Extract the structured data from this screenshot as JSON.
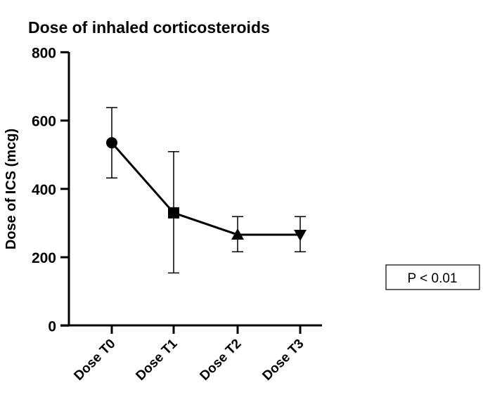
{
  "chart_data": {
    "type": "line",
    "title": "Dose of inhaled corticosteroids",
    "xlabel": "",
    "ylabel": "Dose of ICS (mcg)",
    "categories": [
      "Dose T0",
      "Dose T1",
      "Dose T2",
      "Dose T3"
    ],
    "values": [
      535,
      330,
      266,
      266
    ],
    "error_upper": [
      638,
      509,
      319,
      319
    ],
    "error_lower": [
      432,
      154,
      216,
      216
    ],
    "markers": [
      "circle",
      "square",
      "triangle-up",
      "triangle-down"
    ],
    "ylim": [
      0,
      800
    ],
    "yticks": [
      0,
      200,
      400,
      600,
      800
    ],
    "grid": false,
    "color": "#000000",
    "annotation": "P < 0.01"
  }
}
